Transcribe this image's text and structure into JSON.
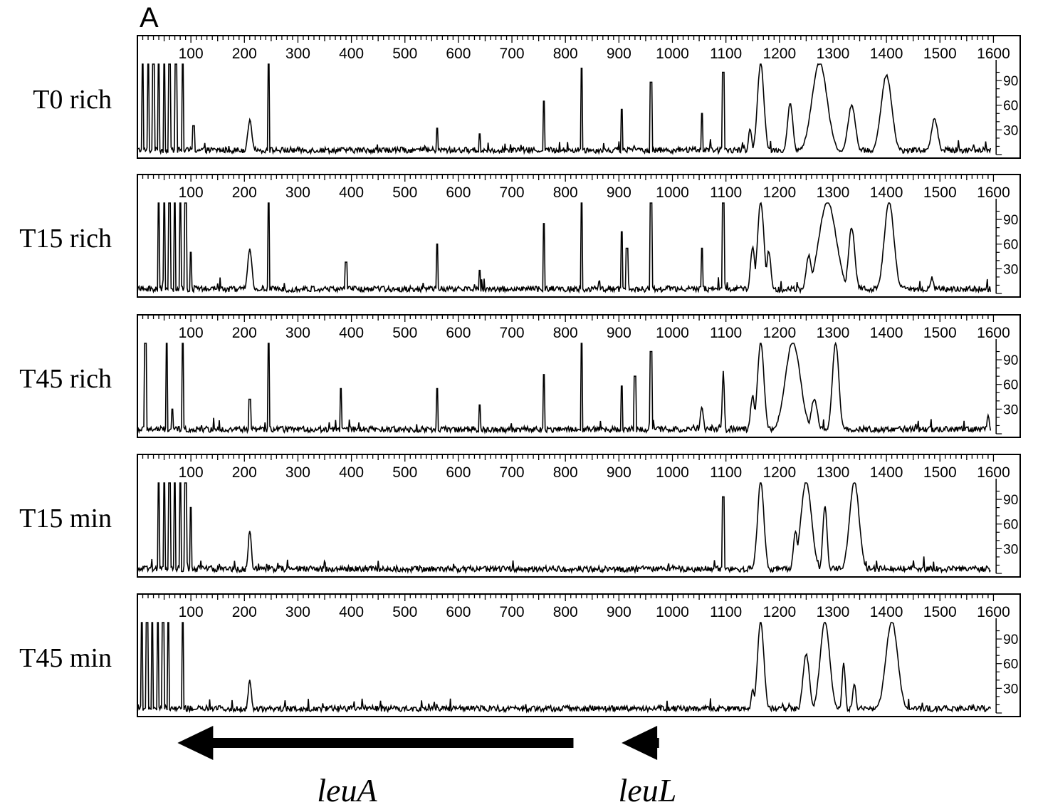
{
  "figure": {
    "panel_letter": "A",
    "genes": [
      {
        "name": "leuA",
        "start": 815,
        "end": 75
      },
      {
        "name": "leuL",
        "start": 975,
        "end": 905
      }
    ]
  },
  "chart_data": {
    "type": "line",
    "xlim": [
      0,
      1650
    ],
    "ylim": [
      0,
      110
    ],
    "x_ticks": [
      100,
      200,
      300,
      400,
      500,
      600,
      700,
      800,
      900,
      1000,
      1100,
      1200,
      1300,
      1400,
      1500,
      1600
    ],
    "y_ticks": [
      30,
      60,
      90
    ],
    "clip_max": 110,
    "baseline_noise": 6,
    "series": [
      {
        "name": "T0 rich",
        "peaks": [
          {
            "x": 10,
            "h": 110,
            "w": 1
          },
          {
            "x": 20,
            "h": 110,
            "w": 1
          },
          {
            "x": 30,
            "h": 110,
            "w": 1
          },
          {
            "x": 40,
            "h": 110,
            "w": 1
          },
          {
            "x": 50,
            "h": 110,
            "w": 1
          },
          {
            "x": 60,
            "h": 110,
            "w": 1
          },
          {
            "x": 72,
            "h": 110,
            "w": 1
          },
          {
            "x": 85,
            "h": 110,
            "w": 1
          },
          {
            "x": 105,
            "h": 35,
            "w": 1
          },
          {
            "x": 210,
            "h": 40,
            "w": 4
          },
          {
            "x": 245,
            "h": 110,
            "w": 1
          },
          {
            "x": 560,
            "h": 32,
            "w": 1
          },
          {
            "x": 640,
            "h": 25,
            "w": 1
          },
          {
            "x": 760,
            "h": 65,
            "w": 1
          },
          {
            "x": 830,
            "h": 105,
            "w": 1
          },
          {
            "x": 905,
            "h": 55,
            "w": 1
          },
          {
            "x": 960,
            "h": 88,
            "w": 1
          },
          {
            "x": 1055,
            "h": 50,
            "w": 1
          },
          {
            "x": 1095,
            "h": 100,
            "w": 1
          },
          {
            "x": 1145,
            "h": 30,
            "w": 3
          },
          {
            "x": 1165,
            "h": 110,
            "w": 6
          },
          {
            "x": 1220,
            "h": 60,
            "w": 5
          },
          {
            "x": 1275,
            "h": 110,
            "w": 14
          },
          {
            "x": 1335,
            "h": 58,
            "w": 7
          },
          {
            "x": 1400,
            "h": 95,
            "w": 10
          },
          {
            "x": 1490,
            "h": 42,
            "w": 6
          }
        ]
      },
      {
        "name": "T15 rich",
        "peaks": [
          {
            "x": 40,
            "h": 110,
            "w": 1
          },
          {
            "x": 50,
            "h": 110,
            "w": 1
          },
          {
            "x": 60,
            "h": 110,
            "w": 1
          },
          {
            "x": 70,
            "h": 110,
            "w": 1
          },
          {
            "x": 80,
            "h": 110,
            "w": 1
          },
          {
            "x": 90,
            "h": 110,
            "w": 1
          },
          {
            "x": 100,
            "h": 50,
            "w": 1
          },
          {
            "x": 210,
            "h": 52,
            "w": 4
          },
          {
            "x": 245,
            "h": 110,
            "w": 1
          },
          {
            "x": 390,
            "h": 38,
            "w": 1
          },
          {
            "x": 560,
            "h": 60,
            "w": 1
          },
          {
            "x": 640,
            "h": 28,
            "w": 1
          },
          {
            "x": 760,
            "h": 85,
            "w": 1
          },
          {
            "x": 830,
            "h": 110,
            "w": 1
          },
          {
            "x": 905,
            "h": 75,
            "w": 1
          },
          {
            "x": 915,
            "h": 55,
            "w": 1
          },
          {
            "x": 960,
            "h": 110,
            "w": 1
          },
          {
            "x": 1055,
            "h": 55,
            "w": 1
          },
          {
            "x": 1095,
            "h": 110,
            "w": 1
          },
          {
            "x": 1150,
            "h": 55,
            "w": 4
          },
          {
            "x": 1165,
            "h": 110,
            "w": 6
          },
          {
            "x": 1180,
            "h": 50,
            "w": 4
          },
          {
            "x": 1255,
            "h": 45,
            "w": 5
          },
          {
            "x": 1290,
            "h": 110,
            "w": 16
          },
          {
            "x": 1335,
            "h": 78,
            "w": 6
          },
          {
            "x": 1405,
            "h": 110,
            "w": 9
          },
          {
            "x": 1485,
            "h": 18,
            "w": 3
          }
        ]
      },
      {
        "name": "T45 rich",
        "peaks": [
          {
            "x": 15,
            "h": 110,
            "w": 1
          },
          {
            "x": 55,
            "h": 110,
            "w": 1
          },
          {
            "x": 65,
            "h": 30,
            "w": 1
          },
          {
            "x": 85,
            "h": 110,
            "w": 1
          },
          {
            "x": 210,
            "h": 42,
            "w": 1
          },
          {
            "x": 245,
            "h": 110,
            "w": 1
          },
          {
            "x": 380,
            "h": 55,
            "w": 1
          },
          {
            "x": 560,
            "h": 55,
            "w": 1
          },
          {
            "x": 640,
            "h": 35,
            "w": 1
          },
          {
            "x": 760,
            "h": 72,
            "w": 1
          },
          {
            "x": 830,
            "h": 110,
            "w": 1
          },
          {
            "x": 905,
            "h": 58,
            "w": 1
          },
          {
            "x": 930,
            "h": 70,
            "w": 1
          },
          {
            "x": 960,
            "h": 100,
            "w": 1
          },
          {
            "x": 1055,
            "h": 30,
            "w": 3
          },
          {
            "x": 1095,
            "h": 75,
            "w": 2
          },
          {
            "x": 1150,
            "h": 45,
            "w": 4
          },
          {
            "x": 1165,
            "h": 110,
            "w": 6
          },
          {
            "x": 1225,
            "h": 110,
            "w": 14
          },
          {
            "x": 1265,
            "h": 40,
            "w": 6
          },
          {
            "x": 1305,
            "h": 110,
            "w": 6
          },
          {
            "x": 1590,
            "h": 22,
            "w": 2
          }
        ]
      },
      {
        "name": "T15 min",
        "peaks": [
          {
            "x": 40,
            "h": 110,
            "w": 1
          },
          {
            "x": 50,
            "h": 110,
            "w": 1
          },
          {
            "x": 60,
            "h": 110,
            "w": 1
          },
          {
            "x": 70,
            "h": 110,
            "w": 1
          },
          {
            "x": 80,
            "h": 110,
            "w": 1
          },
          {
            "x": 90,
            "h": 110,
            "w": 1
          },
          {
            "x": 100,
            "h": 80,
            "w": 1
          },
          {
            "x": 210,
            "h": 50,
            "w": 3
          },
          {
            "x": 1095,
            "h": 93,
            "w": 1
          },
          {
            "x": 1165,
            "h": 110,
            "w": 6
          },
          {
            "x": 1230,
            "h": 50,
            "w": 4
          },
          {
            "x": 1250,
            "h": 110,
            "w": 10
          },
          {
            "x": 1285,
            "h": 80,
            "w": 4
          },
          {
            "x": 1340,
            "h": 110,
            "w": 9
          }
        ]
      },
      {
        "name": "T45 min",
        "peaks": [
          {
            "x": 8,
            "h": 110,
            "w": 1
          },
          {
            "x": 18,
            "h": 110,
            "w": 1
          },
          {
            "x": 28,
            "h": 110,
            "w": 1
          },
          {
            "x": 38,
            "h": 110,
            "w": 1
          },
          {
            "x": 48,
            "h": 110,
            "w": 1
          },
          {
            "x": 58,
            "h": 110,
            "w": 1
          },
          {
            "x": 85,
            "h": 110,
            "w": 1
          },
          {
            "x": 210,
            "h": 38,
            "w": 3
          },
          {
            "x": 1150,
            "h": 28,
            "w": 3
          },
          {
            "x": 1165,
            "h": 110,
            "w": 6
          },
          {
            "x": 1250,
            "h": 70,
            "w": 6
          },
          {
            "x": 1285,
            "h": 110,
            "w": 9
          },
          {
            "x": 1320,
            "h": 60,
            "w": 3
          },
          {
            "x": 1340,
            "h": 35,
            "w": 3
          },
          {
            "x": 1410,
            "h": 110,
            "w": 11
          }
        ]
      }
    ]
  }
}
